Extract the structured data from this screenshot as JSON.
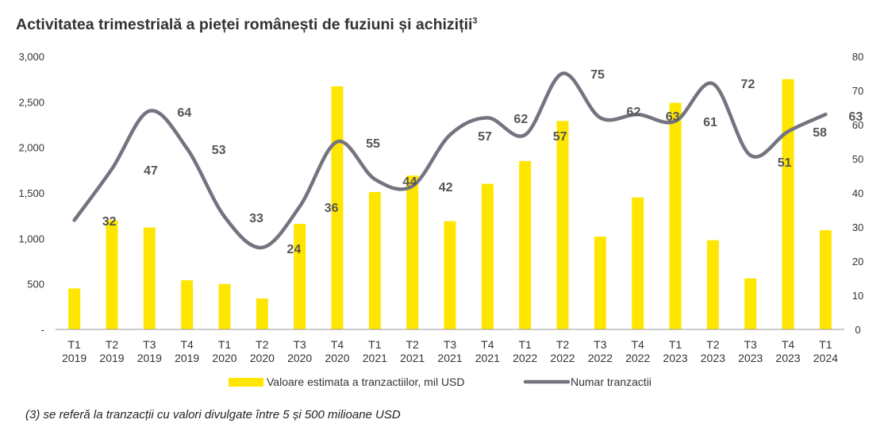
{
  "title": "Activitatea trimestrială a pieței românești de fuziuni și achiziții",
  "title_superscript": "3",
  "footnote": "(3) se referă la tranzacții cu valori divulgate între 5 și 500 milioane USD",
  "colors": {
    "bars": "#FFE600",
    "line": "#747480",
    "text": "#333333",
    "axis": "#999999"
  },
  "chart_data": {
    "type": "bar",
    "categories": [
      [
        "T1",
        "2019"
      ],
      [
        "T2",
        "2019"
      ],
      [
        "T3",
        "2019"
      ],
      [
        "T4",
        "2019"
      ],
      [
        "T1",
        "2020"
      ],
      [
        "T2",
        "2020"
      ],
      [
        "T3",
        "2020"
      ],
      [
        "T4",
        "2020"
      ],
      [
        "T1",
        "2021"
      ],
      [
        "T2",
        "2021"
      ],
      [
        "T3",
        "2021"
      ],
      [
        "T4",
        "2021"
      ],
      [
        "T1",
        "2022"
      ],
      [
        "T2",
        "2022"
      ],
      [
        "T3",
        "2022"
      ],
      [
        "T4",
        "2022"
      ],
      [
        "T1",
        "2023"
      ],
      [
        "T2",
        "2023"
      ],
      [
        "T3",
        "2023"
      ],
      [
        "T4",
        "2023"
      ],
      [
        "T1",
        "2024"
      ]
    ],
    "series": [
      {
        "name": "Valoare estimata a tranzactiilor, mil USD",
        "type": "bar",
        "axis": "left",
        "values": [
          450,
          1200,
          1120,
          540,
          500,
          340,
          1160,
          2670,
          1510,
          1690,
          1190,
          1600,
          1850,
          2290,
          1020,
          1450,
          2490,
          980,
          560,
          2750,
          1090
        ]
      },
      {
        "name": "Numar tranzactii",
        "type": "line",
        "axis": "right",
        "smooth": true,
        "values": [
          32,
          47,
          64,
          53,
          33,
          24,
          36,
          55,
          44,
          42,
          57,
          62,
          57,
          75,
          62,
          63,
          61,
          72,
          51,
          58,
          63
        ],
        "labels": [
          "32",
          "47",
          "64",
          "53",
          "33",
          "24",
          "36",
          "55",
          "44",
          "42",
          "57",
          "62",
          "57",
          "75",
          "62",
          "63",
          "61",
          "72",
          "51",
          "58",
          "63"
        ]
      }
    ],
    "y_left": {
      "min": 0,
      "max": 3000,
      "ticks": [
        0,
        500,
        1000,
        1500,
        2000,
        2500,
        3000
      ],
      "tick_labels": [
        "-",
        "500",
        "1,000",
        "1,500",
        "2,000",
        "2,500",
        "3,000"
      ]
    },
    "y_right": {
      "min": 0,
      "max": 80,
      "ticks": [
        0,
        10,
        20,
        30,
        40,
        50,
        60,
        70,
        80
      ],
      "tick_labels": [
        "0",
        "10",
        "20",
        "30",
        "40",
        "50",
        "60",
        "70",
        "80"
      ]
    },
    "grid": false,
    "legend": "bottom-center"
  }
}
